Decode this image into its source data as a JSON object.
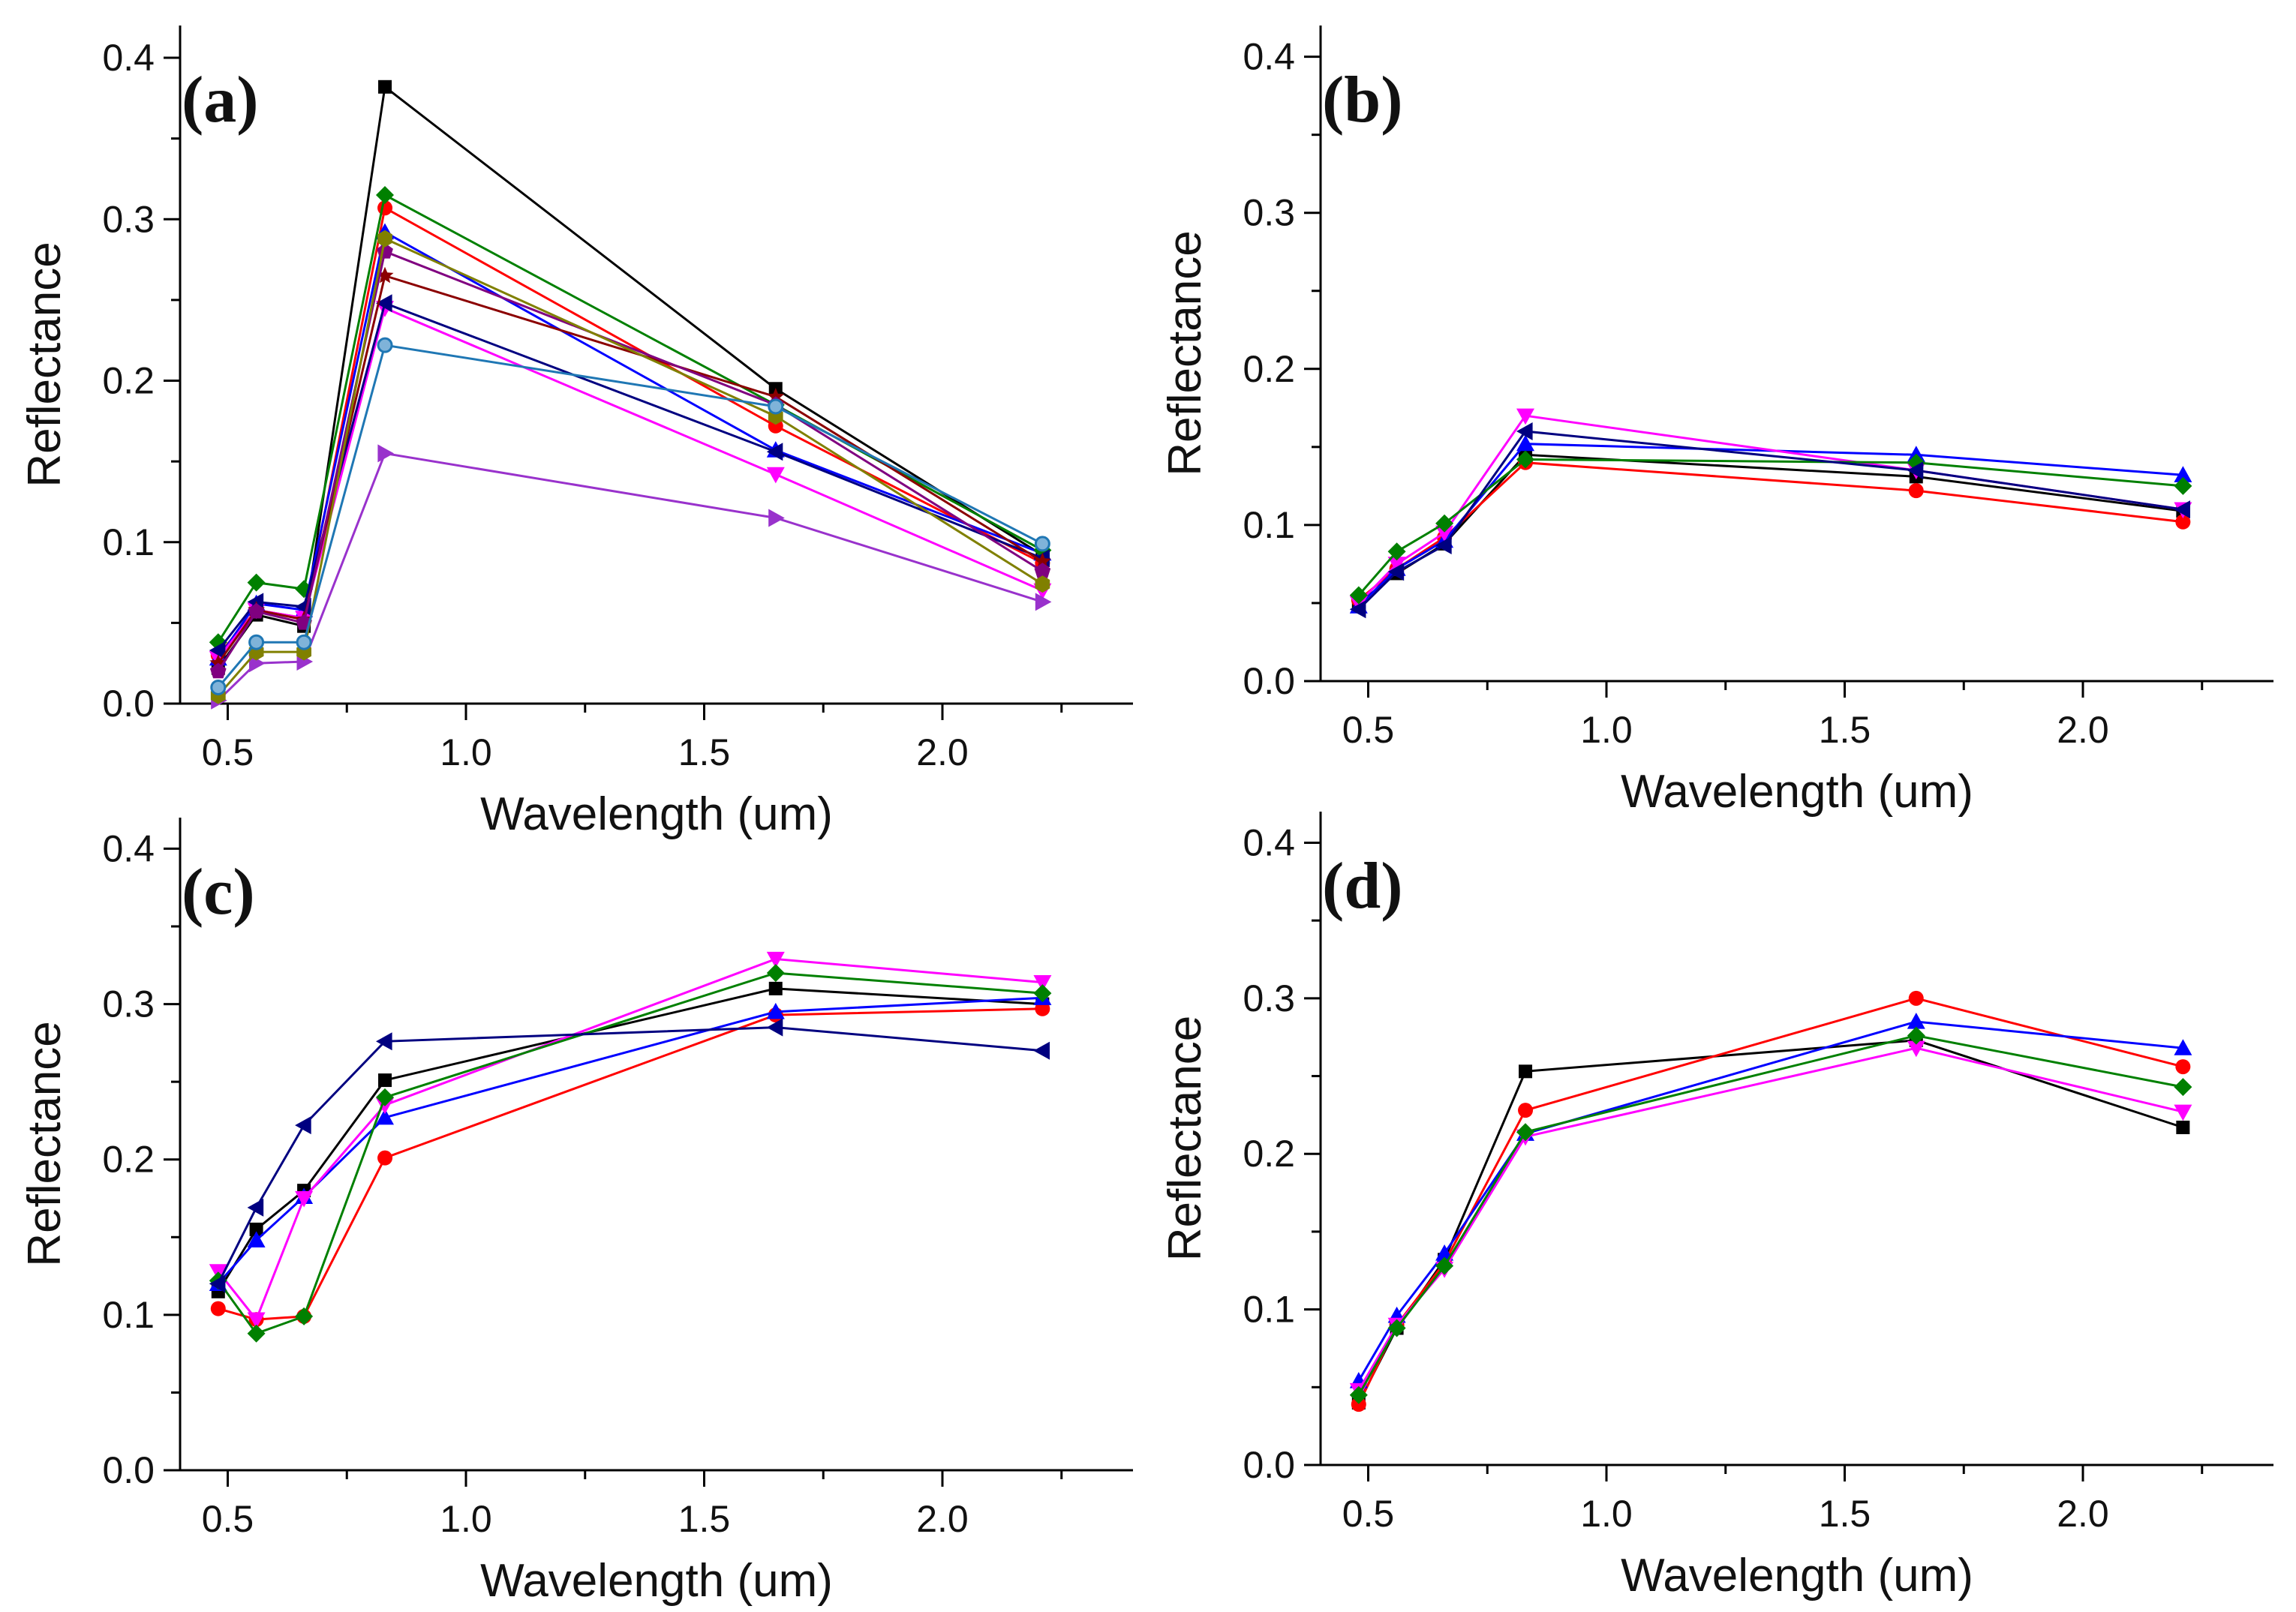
{
  "chart_data": [
    {
      "type": "line",
      "panel_label": "(a)",
      "xlabel": "Wavelength (um)",
      "ylabel": "Reflectance",
      "xlim": [
        0.4,
        2.4
      ],
      "ylim": [
        0.0,
        0.42
      ],
      "xticks": [
        "0.5",
        "1.0",
        "1.5",
        "2.0"
      ],
      "yticks": [
        "0.0",
        "0.1",
        "0.2",
        "0.3",
        "0.4"
      ],
      "x": [
        0.48,
        0.56,
        0.66,
        0.83,
        1.65,
        2.21
      ],
      "series": [
        {
          "name": "black square",
          "color": "#000000",
          "marker": "square",
          "values": [
            0.022,
            0.055,
            0.048,
            0.382,
            0.195,
            0.092
          ]
        },
        {
          "name": "red circle",
          "color": "#ff0000",
          "marker": "circle",
          "values": [
            0.03,
            0.058,
            0.053,
            0.307,
            0.172,
            0.087
          ]
        },
        {
          "name": "blue triangle",
          "color": "#0000ff",
          "marker": "triangle-up",
          "values": [
            0.028,
            0.062,
            0.058,
            0.292,
            0.157,
            0.093
          ]
        },
        {
          "name": "magenta triangle down",
          "color": "#ff00ff",
          "marker": "triangle-down",
          "values": [
            0.028,
            0.058,
            0.053,
            0.245,
            0.142,
            0.07
          ]
        },
        {
          "name": "green diamond",
          "color": "#008000",
          "marker": "diamond",
          "values": [
            0.038,
            0.075,
            0.071,
            0.315,
            0.185,
            0.095
          ]
        },
        {
          "name": "navy triangle left",
          "color": "#000080",
          "marker": "triangle-left",
          "values": [
            0.033,
            0.063,
            0.06,
            0.248,
            0.156,
            0.09
          ]
        },
        {
          "name": "violet triangle right",
          "color": "#9932cc",
          "marker": "triangle-right",
          "values": [
            0.002,
            0.025,
            0.026,
            0.155,
            0.115,
            0.063
          ]
        },
        {
          "name": "brown star",
          "color": "#8b0000",
          "marker": "star",
          "values": [
            0.025,
            0.058,
            0.052,
            0.265,
            0.19,
            0.088
          ]
        },
        {
          "name": "purple pentagon",
          "color": "#800080",
          "marker": "pentagon",
          "values": [
            0.02,
            0.057,
            0.05,
            0.28,
            0.185,
            0.082
          ]
        },
        {
          "name": "olive hexagon",
          "color": "#808000",
          "marker": "hexagon",
          "values": [
            0.005,
            0.032,
            0.032,
            0.288,
            0.178,
            0.074
          ]
        },
        {
          "name": "teal circle",
          "color": "#1f77b4",
          "marker": "circle-open",
          "values": [
            0.01,
            0.038,
            0.038,
            0.222,
            0.184,
            0.099
          ]
        }
      ]
    },
    {
      "type": "line",
      "panel_label": "(b)",
      "xlabel": "Wavelength (um)",
      "ylabel": "Reflectance",
      "xlim": [
        0.4,
        2.4
      ],
      "ylim": [
        0.0,
        0.42
      ],
      "xticks": [
        "0.5",
        "1.0",
        "1.5",
        "2.0"
      ],
      "yticks": [
        "0.0",
        "0.1",
        "0.2",
        "0.3",
        "0.4"
      ],
      "x": [
        0.48,
        0.56,
        0.66,
        0.83,
        1.65,
        2.21
      ],
      "series": [
        {
          "name": "black square",
          "color": "#000000",
          "marker": "square",
          "values": [
            0.05,
            0.069,
            0.088,
            0.145,
            0.131,
            0.109
          ]
        },
        {
          "name": "red circle",
          "color": "#ff0000",
          "marker": "circle",
          "values": [
            0.052,
            0.072,
            0.092,
            0.14,
            0.122,
            0.102
          ]
        },
        {
          "name": "blue triangle",
          "color": "#0000ff",
          "marker": "triangle-up",
          "values": [
            0.048,
            0.072,
            0.09,
            0.152,
            0.145,
            0.132
          ]
        },
        {
          "name": "magenta triangle down",
          "color": "#ff00ff",
          "marker": "triangle-down",
          "values": [
            0.05,
            0.075,
            0.095,
            0.17,
            0.135,
            0.11
          ]
        },
        {
          "name": "green diamond",
          "color": "#008000",
          "marker": "diamond",
          "values": [
            0.055,
            0.083,
            0.101,
            0.142,
            0.14,
            0.125
          ]
        },
        {
          "name": "navy triangle left",
          "color": "#000080",
          "marker": "triangle-left",
          "values": [
            0.046,
            0.07,
            0.087,
            0.16,
            0.135,
            0.11
          ]
        }
      ]
    },
    {
      "type": "line",
      "panel_label": "(c)",
      "xlabel": "Wavelength (um)",
      "ylabel": "Reflectance",
      "xlim": [
        0.4,
        2.4
      ],
      "ylim": [
        0.0,
        0.42
      ],
      "xticks": [
        "0.5",
        "1.0",
        "1.5",
        "2.0"
      ],
      "yticks": [
        "0.0",
        "0.1",
        "0.2",
        "0.3",
        "0.4"
      ],
      "x": [
        0.48,
        0.56,
        0.66,
        0.83,
        1.65,
        2.21
      ],
      "series": [
        {
          "name": "black square",
          "color": "#000000",
          "marker": "square",
          "values": [
            0.115,
            0.155,
            0.18,
            0.251,
            0.31,
            0.3
          ]
        },
        {
          "name": "red circle",
          "color": "#ff0000",
          "marker": "circle",
          "values": [
            0.104,
            0.097,
            0.099,
            0.201,
            0.293,
            0.297
          ]
        },
        {
          "name": "blue triangle",
          "color": "#0000ff",
          "marker": "triangle-up",
          "values": [
            0.12,
            0.148,
            0.176,
            0.227,
            0.295,
            0.304
          ]
        },
        {
          "name": "magenta triangle down",
          "color": "#ff00ff",
          "marker": "triangle-down",
          "values": [
            0.128,
            0.097,
            0.175,
            0.235,
            0.329,
            0.314
          ]
        },
        {
          "name": "green diamond",
          "color": "#008000",
          "marker": "diamond",
          "values": [
            0.122,
            0.088,
            0.099,
            0.24,
            0.32,
            0.307
          ]
        },
        {
          "name": "navy triangle left",
          "color": "#000080",
          "marker": "triangle-left",
          "values": [
            0.12,
            0.169,
            0.222,
            0.276,
            0.285,
            0.27
          ]
        }
      ]
    },
    {
      "type": "line",
      "panel_label": "(d)",
      "xlabel": "Wavelength (um)",
      "ylabel": "Reflectance",
      "xlim": [
        0.4,
        2.4
      ],
      "ylim": [
        0.0,
        0.42
      ],
      "xticks": [
        "0.5",
        "1.0",
        "1.5",
        "2.0"
      ],
      "yticks": [
        "0.0",
        "0.1",
        "0.2",
        "0.3",
        "0.4"
      ],
      "x": [
        0.48,
        0.56,
        0.66,
        0.83,
        1.65,
        2.21
      ],
      "series": [
        {
          "name": "black square",
          "color": "#000000",
          "marker": "square",
          "values": [
            0.04,
            0.088,
            0.132,
            0.253,
            0.273,
            0.217
          ]
        },
        {
          "name": "red circle",
          "color": "#ff0000",
          "marker": "circle",
          "values": [
            0.039,
            0.09,
            0.13,
            0.228,
            0.3,
            0.256
          ]
        },
        {
          "name": "blue triangle",
          "color": "#0000ff",
          "marker": "triangle-up",
          "values": [
            0.054,
            0.096,
            0.136,
            0.213,
            0.285,
            0.268
          ]
        },
        {
          "name": "magenta triangle down",
          "color": "#ff00ff",
          "marker": "triangle-down",
          "values": [
            0.048,
            0.09,
            0.126,
            0.211,
            0.268,
            0.227
          ]
        },
        {
          "name": "green diamond",
          "color": "#008000",
          "marker": "diamond",
          "values": [
            0.045,
            0.088,
            0.128,
            0.214,
            0.276,
            0.243
          ]
        }
      ]
    }
  ]
}
